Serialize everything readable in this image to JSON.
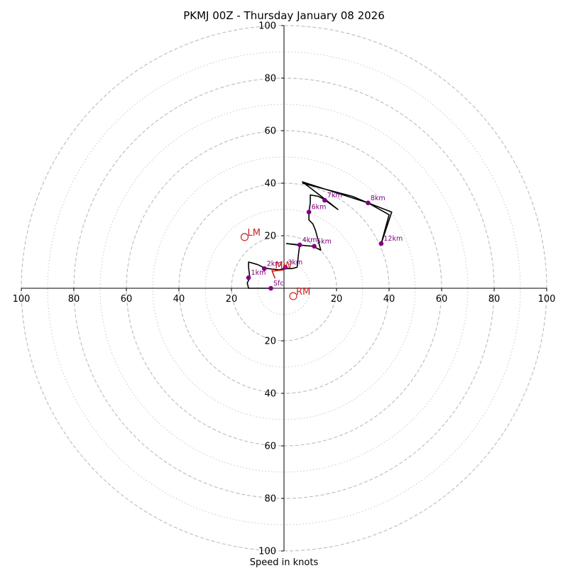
{
  "chart_data": {
    "type": "hodograph",
    "title": "PKMJ 00Z - Thursday January 08 2026",
    "xlabel": "Speed in knots",
    "range_max": 100,
    "ring_step_major": 20,
    "ring_step_minor": 10,
    "x_tick_labels": [
      "100",
      "80",
      "60",
      "40",
      "20",
      "20",
      "40",
      "60",
      "80",
      "100"
    ],
    "x_tick_values": [
      -100,
      -80,
      -60,
      -40,
      -20,
      20,
      40,
      60,
      80,
      100
    ],
    "y_tick_labels": [
      "100",
      "80",
      "60",
      "40",
      "20",
      "20",
      "40",
      "60",
      "80",
      "100"
    ],
    "y_tick_values": [
      100,
      80,
      60,
      40,
      20,
      -20,
      -40,
      -60,
      -80,
      -100
    ],
    "trace": [
      [
        -5,
        0
      ],
      [
        -13.5,
        0
      ],
      [
        -14,
        2
      ],
      [
        -13,
        4
      ],
      [
        -13.5,
        8
      ],
      [
        -13.5,
        10
      ],
      [
        -10,
        9
      ],
      [
        -8,
        8
      ],
      [
        -6,
        7.5
      ],
      [
        -2,
        7
      ],
      [
        0,
        7.5
      ],
      [
        3,
        7.5
      ],
      [
        5,
        8
      ],
      [
        5.5,
        13
      ],
      [
        6,
        16.5
      ],
      [
        1,
        17
      ],
      [
        5,
        16.5
      ],
      [
        11,
        16
      ],
      [
        14,
        14.5
      ],
      [
        12,
        22
      ],
      [
        11,
        24.5
      ],
      [
        9.5,
        26
      ],
      [
        9.5,
        29
      ],
      [
        10,
        32.5
      ],
      [
        10,
        35.5
      ],
      [
        13,
        35
      ],
      [
        15,
        34
      ],
      [
        20.5,
        30
      ],
      [
        15.5,
        34
      ],
      [
        7,
        40.5
      ],
      [
        32,
        32.5
      ],
      [
        40,
        28
      ],
      [
        37,
        17
      ],
      [
        41,
        29
      ],
      [
        32,
        32.5
      ],
      [
        26,
        35
      ],
      [
        7,
        40
      ]
    ],
    "height_points": [
      {
        "label": "Sfc",
        "u": -5,
        "v": 0
      },
      {
        "label": "1km",
        "u": -13.5,
        "v": 4
      },
      {
        "label": "2km",
        "u": -7.5,
        "v": 7.5
      },
      {
        "label": "3km",
        "u": 0.5,
        "v": 8
      },
      {
        "label": "4km",
        "u": 6,
        "v": 16.5
      },
      {
        "label": "5km",
        "u": 11.5,
        "v": 16
      },
      {
        "label": "6km",
        "u": 9.5,
        "v": 29
      },
      {
        "label": "7km",
        "u": 15.5,
        "v": 33.5
      },
      {
        "label": "8km",
        "u": 32,
        "v": 32.5
      },
      {
        "label": "12km",
        "u": 37,
        "v": 17
      }
    ],
    "motion_markers": [
      {
        "label": "LM",
        "u": -15,
        "v": 19.5
      },
      {
        "label": "RM",
        "u": 3.5,
        "v": -3
      },
      {
        "label": "MW",
        "u": -4.5,
        "v": 7
      }
    ],
    "mean_wind_vector": {
      "from": [
        0,
        7
      ],
      "to": [
        -4.5,
        7.5
      ],
      "via": [
        -4.5,
        6.5
      ]
    },
    "colors": {
      "trace": "#000000",
      "height_dots": "#800080",
      "motion": "#cc2222",
      "grid": "#bbbbbb",
      "axes": "#000000"
    }
  }
}
